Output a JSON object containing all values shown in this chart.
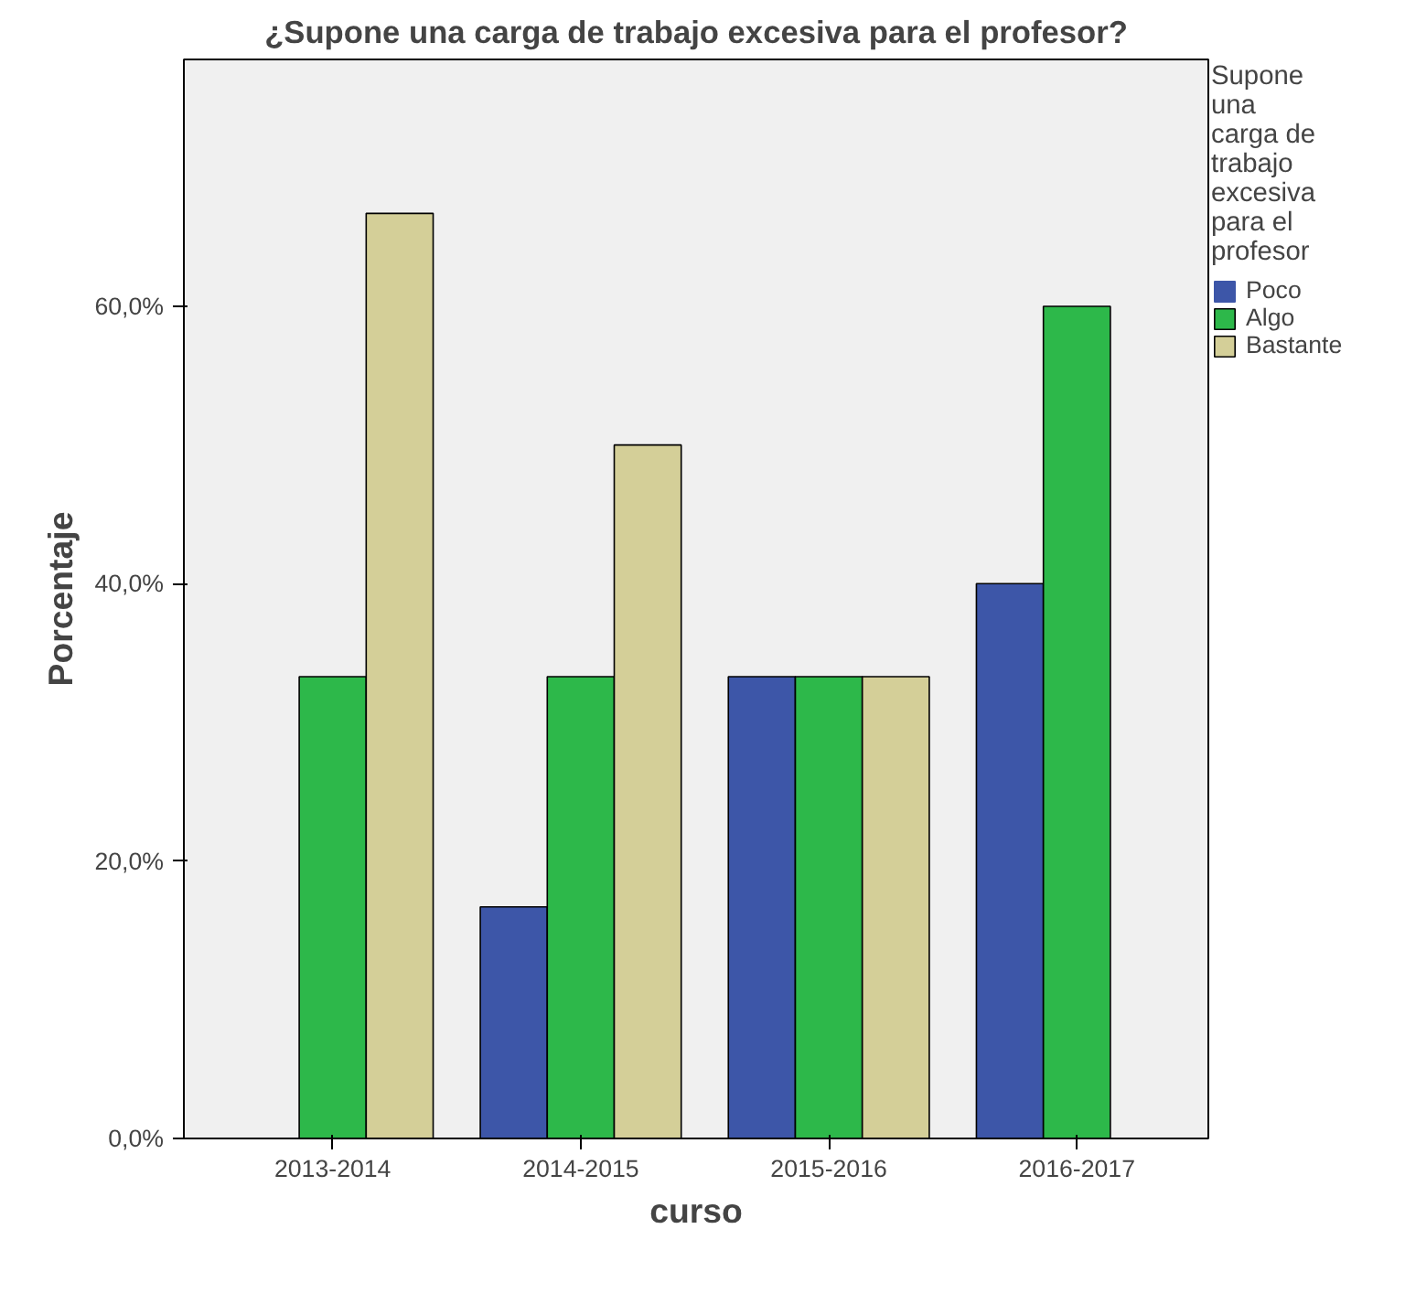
{
  "chart_data": {
    "type": "bar",
    "title": "¿Supone una carga de trabajo excesiva para el profesor?",
    "xlabel": "curso",
    "ylabel": "Porcentaje",
    "legend_title": "Supone una carga de trabajo excesiva para el profesor",
    "categories": [
      "2013-2014",
      "2014-2015",
      "2015-2016",
      "2016-2017"
    ],
    "series": [
      {
        "name": "Poco",
        "color": "#3d56a8",
        "values": [
          0,
          16.7,
          33.3,
          40
        ]
      },
      {
        "name": "Algo",
        "color": "#2db84a",
        "values": [
          33.3,
          33.3,
          33.3,
          60
        ]
      },
      {
        "name": "Bastante",
        "color": "#d4cf98",
        "values": [
          66.7,
          50,
          33.3,
          0
        ]
      }
    ],
    "ylim": [
      0,
      77.8
    ],
    "yticks": [
      {
        "value": 0,
        "label": "0,0%"
      },
      {
        "value": 20,
        "label": "20,0%"
      },
      {
        "value": 40,
        "label": "40,0%"
      },
      {
        "value": 60,
        "label": "60,0%"
      }
    ],
    "grid": false,
    "legend": "right"
  }
}
